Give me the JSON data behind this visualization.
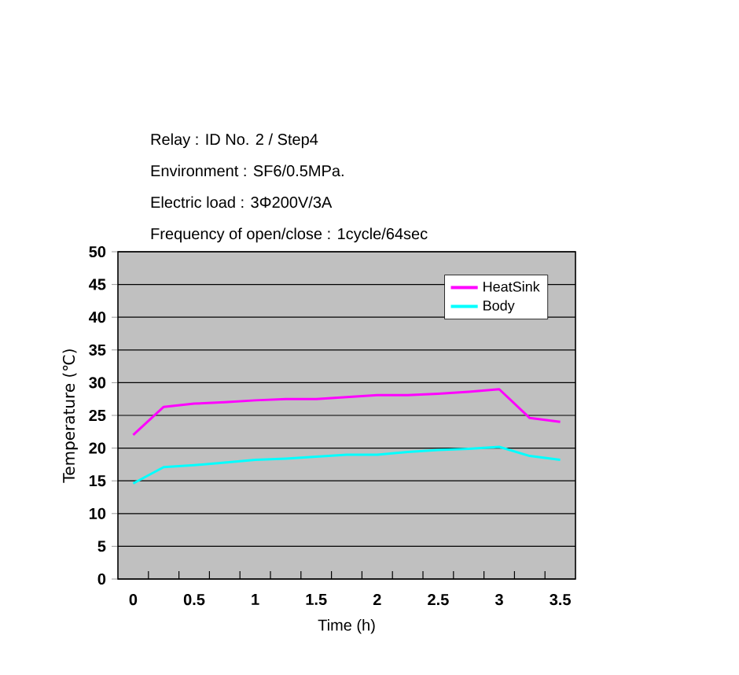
{
  "chart_data": {
    "type": "line",
    "title": "Relay : ID No. 2 / Step4",
    "annotations": [
      "Environment : SF6/0.5MPa.",
      "Electric load : 3Φ200V/3A",
      "Frequency of open/close : 1cycle/64sec"
    ],
    "xlabel": "Time (h)",
    "ylabel": "Temperature (℃)",
    "x": [
      0,
      0.25,
      0.5,
      0.75,
      1.0,
      1.25,
      1.5,
      1.75,
      2.0,
      2.25,
      2.5,
      2.75,
      3.0,
      3.25,
      3.5
    ],
    "series": [
      {
        "name": "HeatSink",
        "color": "#ff00ff",
        "values": [
          22.0,
          26.3,
          26.8,
          27.0,
          27.3,
          27.5,
          27.5,
          27.8,
          28.1,
          28.1,
          28.3,
          28.6,
          29.0,
          24.6,
          24.0
        ]
      },
      {
        "name": "Body",
        "color": "#00ffff",
        "values": [
          14.6,
          17.1,
          17.4,
          17.8,
          18.2,
          18.4,
          18.7,
          19.0,
          19.0,
          19.4,
          19.7,
          19.9,
          20.2,
          18.8,
          18.2
        ]
      }
    ],
    "xlim": [
      -0.125,
      3.625
    ],
    "xticks": [
      0,
      0.5,
      1,
      1.5,
      2,
      2.5,
      3,
      3.5,
      {
        "value": 0.125,
        "label": null
      },
      {
        "value": 0.375,
        "label": null
      },
      {
        "value": 0.625,
        "label": null
      },
      {
        "value": 0.875,
        "label": null
      },
      {
        "value": 1.125,
        "label": null
      },
      {
        "value": 1.375,
        "label": null
      },
      {
        "value": 1.625,
        "label": null
      },
      {
        "value": 1.875,
        "label": null
      },
      {
        "value": 2.125,
        "label": null
      },
      {
        "value": 2.375,
        "label": null
      },
      {
        "value": 2.625,
        "label": null
      },
      {
        "value": 2.875,
        "label": null
      },
      {
        "value": 3.125,
        "label": null
      },
      {
        "value": 3.375,
        "label": null
      }
    ],
    "ylim": [
      0,
      50
    ],
    "yticks": [
      0,
      5,
      10,
      15,
      20,
      25,
      30,
      35,
      40,
      45,
      50
    ],
    "grid": "y",
    "legend": "top right",
    "marker": "none",
    "line_style": "solid"
  }
}
